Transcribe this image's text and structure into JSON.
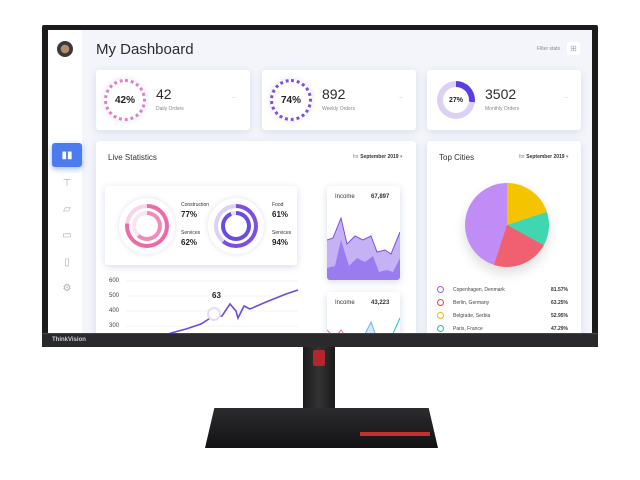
{
  "monitor": {
    "brand": "ThinkVision"
  },
  "header": {
    "title": "My Dashboard",
    "filter_label": "Filter stats",
    "filter_icon": "grid-icon"
  },
  "sidebar": {
    "items": [
      {
        "icon": "bar-chart-icon",
        "active": true
      },
      {
        "icon": "signpost-icon"
      },
      {
        "icon": "basket-icon"
      },
      {
        "icon": "chat-icon"
      },
      {
        "icon": "clipboard-icon"
      },
      {
        "icon": "gear-icon"
      }
    ]
  },
  "stats": [
    {
      "percent": "42%",
      "value": "42",
      "label": "Daily Orders",
      "more": "...",
      "progress": 42
    },
    {
      "percent": "74%",
      "value": "892",
      "label": "Weekly Orders",
      "more": "...",
      "progress": 74
    },
    {
      "percent": "27%",
      "value": "3502",
      "label": "Monthly Orders",
      "more": "...",
      "progress": 27
    }
  ],
  "live": {
    "title": "Live Statistics",
    "period_prefix": "for",
    "period": "September 2019",
    "rings": [
      {
        "a_label": "Construction",
        "a_value": "77%",
        "b_label": "Services",
        "b_value": "62%"
      },
      {
        "a_label": "Food",
        "a_value": "61%",
        "b_label": "Services",
        "b_value": "94%"
      }
    ],
    "income": [
      {
        "label": "Income",
        "value": "67,897"
      },
      {
        "label": "Income",
        "value": "43,223"
      }
    ],
    "line": {
      "yticks": [
        "600",
        "500",
        "400",
        "300"
      ],
      "highlight": "63"
    }
  },
  "cities": {
    "title": "Top Cities",
    "period_prefix": "for",
    "period": "September 2019",
    "items": [
      {
        "name": "Copenhagen, Denmark",
        "value": "81.57%",
        "color": "#a855f7"
      },
      {
        "name": "Berlin, Germany",
        "value": "63.25%",
        "color": "#ef4444"
      },
      {
        "name": "Belgrade, Serbia",
        "value": "52.95%",
        "color": "#f5b800"
      },
      {
        "name": "Paris, France",
        "value": "47.29%",
        "color": "#22c58b"
      }
    ]
  },
  "colors": {
    "accent": "#4a7cf0",
    "purple": "#7b4fe0",
    "pink": "#ec6aa8"
  }
}
